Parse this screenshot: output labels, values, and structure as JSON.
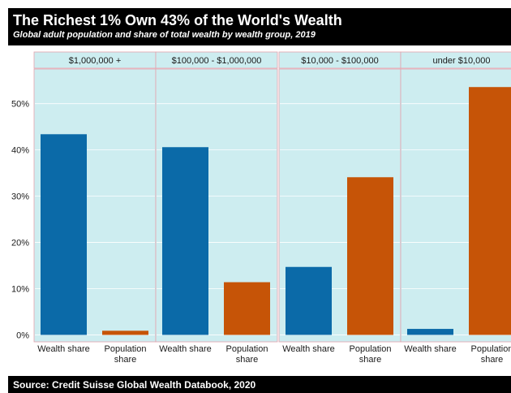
{
  "title": "The Richest 1% Own 43% of the World's Wealth",
  "subtitle": "Global adult population and share of total wealth by wealth group, 2019",
  "source": "Source: Credit Suisse Global Wealth Databook, 2020",
  "colors": {
    "wealth_share": "#0b6aa8",
    "population_share": "#c65407",
    "panel_background": "#cdedf0",
    "strip_background": "#cdedf0",
    "panel_border": "#e3a2ad",
    "gridline": "#ffffff"
  },
  "chart_data": {
    "type": "bar",
    "facets": [
      "$1,000,000 +",
      "$100,000 - $1,000,000",
      "$10,000 - $100,000",
      "under $10,000"
    ],
    "categories": [
      "Wealth share",
      "Population share"
    ],
    "category_labels": [
      [
        "Wealth share"
      ],
      [
        "Population",
        "share"
      ]
    ],
    "series": [
      {
        "facet": "$1,000,000 +",
        "values": [
          43.4,
          0.9
        ]
      },
      {
        "facet": "$100,000 - $1,000,000",
        "values": [
          40.6,
          11.4
        ]
      },
      {
        "facet": "$10,000 - $100,000",
        "values": [
          14.7,
          34.1
        ]
      },
      {
        "facet": "under $10,000",
        "values": [
          1.3,
          53.6
        ]
      }
    ],
    "y_ticks": [
      0,
      10,
      20,
      30,
      40,
      50
    ],
    "y_tick_labels": [
      "0%",
      "10%",
      "20%",
      "30%",
      "40%",
      "50%"
    ],
    "ylim": [
      -1.5,
      57.5
    ],
    "grid": true
  }
}
